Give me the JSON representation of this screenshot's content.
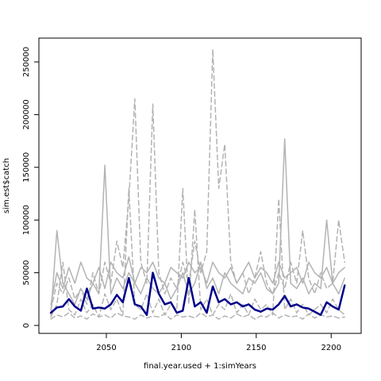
{
  "chart_data": {
    "type": "line",
    "x_label": "final.year.used + 1:simYears",
    "y_label": "sim.est$catch",
    "x": [
      2013,
      2017,
      2021,
      2025,
      2029,
      2033,
      2037,
      2041,
      2045,
      2049,
      2053,
      2057,
      2061,
      2065,
      2069,
      2073,
      2077,
      2081,
      2085,
      2089,
      2093,
      2097,
      2101,
      2105,
      2109,
      2113,
      2117,
      2121,
      2125,
      2129,
      2133,
      2137,
      2141,
      2145,
      2149,
      2153,
      2157,
      2161,
      2165,
      2169,
      2173,
      2177,
      2181,
      2185,
      2189,
      2193,
      2197,
      2201,
      2205,
      2209
    ],
    "series": [
      {
        "color": "#b3b3b3",
        "dashed": true,
        "width": 1.5,
        "values": [
          15000,
          40000,
          30000,
          45000,
          25000,
          35000,
          20000,
          50000,
          30000,
          60000,
          40000,
          80000,
          55000,
          120000,
          215000,
          60000,
          40000,
          210000,
          50000,
          30000,
          45000,
          35000,
          60000,
          40000,
          80000,
          50000,
          70000,
          262000,
          130000,
          172000,
          60000,
          40000,
          50000,
          30000,
          45000,
          70000,
          40000,
          30000,
          50000,
          35000,
          60000,
          40000,
          90000,
          45000,
          30000,
          50000,
          35000,
          40000,
          100000,
          60000
        ]
      },
      {
        "color": "#b3b3b3",
        "dashed": false,
        "width": 1.5,
        "values": [
          10000,
          90000,
          40000,
          30000,
          20000,
          35000,
          25000,
          40000,
          30000,
          152000,
          30000,
          45000,
          35000,
          50000,
          40000,
          30000,
          45000,
          35000,
          30000,
          40000,
          25000,
          35000,
          50000,
          30000,
          40000,
          60000,
          35000,
          45000,
          30000,
          50000,
          40000,
          35000,
          30000,
          45000,
          40000,
          50000,
          35000,
          30000,
          40000,
          177000,
          40000,
          35000,
          45000,
          30000,
          40000,
          35000,
          100000,
          40000,
          30000,
          45000
        ]
      },
      {
        "color": "#b3b3b3",
        "dashed": true,
        "width": 1.5,
        "values": [
          8000,
          20000,
          60000,
          15000,
          10000,
          25000,
          12000,
          20000,
          8000,
          30000,
          15000,
          25000,
          10000,
          130000,
          20000,
          15000,
          30000,
          12000,
          25000,
          10000,
          20000,
          15000,
          130000,
          20000,
          110000,
          15000,
          25000,
          10000,
          20000,
          15000,
          30000,
          12000,
          20000,
          10000,
          25000,
          15000,
          20000,
          10000,
          120000,
          15000,
          25000,
          12000,
          20000,
          10000,
          15000,
          20000,
          12000,
          25000,
          15000,
          10000
        ]
      },
      {
        "color": "#b3b3b3",
        "dashed": false,
        "width": 1.5,
        "values": [
          20000,
          50000,
          35000,
          55000,
          40000,
          60000,
          45000,
          40000,
          55000,
          35000,
          60000,
          50000,
          45000,
          65000,
          40000,
          55000,
          50000,
          60000,
          45000,
          40000,
          55000,
          50000,
          45000,
          60000,
          50000,
          55000,
          40000,
          60000,
          50000,
          45000,
          55000,
          40000,
          50000,
          60000,
          45000,
          55000,
          50000,
          40000,
          60000,
          45000,
          50000,
          55000,
          40000,
          60000,
          50000,
          45000,
          55000,
          40000,
          50000,
          55000
        ]
      },
      {
        "color": "#b3b3b3",
        "dashed": true,
        "width": 1.5,
        "values": [
          6000,
          10000,
          8000,
          12000,
          7000,
          9000,
          6000,
          11000,
          8000,
          10000,
          7000,
          12000,
          9000,
          8000,
          6000,
          10000,
          7000,
          9000,
          8000,
          11000,
          6000,
          10000,
          8000,
          9000,
          7000,
          12000,
          8000,
          10000,
          6000,
          9000,
          7000,
          11000,
          8000,
          10000,
          6000,
          9000,
          8000,
          12000,
          7000,
          10000,
          8000,
          9000,
          6000,
          11000,
          7000,
          10000,
          8000,
          9000,
          7000,
          8000
        ]
      },
      {
        "color": "#00008b",
        "dashed": false,
        "width": 2.5,
        "values": [
          12000,
          17000,
          18000,
          25000,
          18000,
          14000,
          35000,
          16000,
          17000,
          16000,
          20000,
          29000,
          22000,
          45000,
          20000,
          18000,
          10000,
          50000,
          30000,
          20000,
          22000,
          12000,
          14000,
          45000,
          18000,
          22000,
          12000,
          37000,
          22000,
          25000,
          20000,
          22000,
          18000,
          20000,
          15000,
          13000,
          16000,
          15000,
          20000,
          28000,
          18000,
          20000,
          17000,
          16000,
          13000,
          10000,
          22000,
          18000,
          15000,
          38000
        ]
      }
    ],
    "xlim": [
      2005,
      2220
    ],
    "ylim": [
      -7530,
      272590
    ],
    "xticks": [
      2050,
      2100,
      2150,
      2200
    ],
    "yticks": [
      0,
      50000,
      100000,
      150000,
      200000,
      250000
    ]
  }
}
